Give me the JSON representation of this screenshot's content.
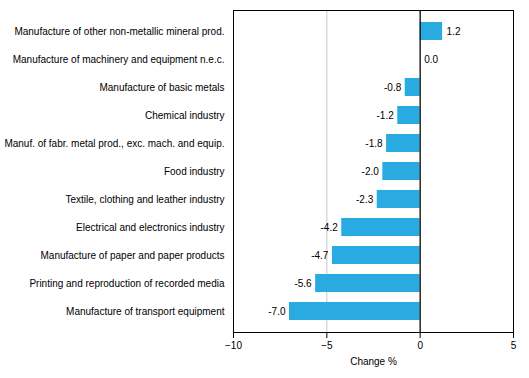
{
  "chart_data": {
    "type": "bar",
    "orientation": "horizontal",
    "categories": [
      "Manufacture of transport equipment",
      "Printing and reproduction of recorded media",
      "Manufacture of paper and paper products",
      "Electrical and electronics industry",
      "Textile, clothing and leather industry",
      "Food industry",
      "Manuf. of fabr. metal prod., exc. mach. and equip.",
      "Chemical industry",
      "Manufacture of basic metals",
      "Manufacture of machinery and equipment n.e.c.",
      "Manufacture of other non-metallic mineral prod."
    ],
    "values": [
      -7.0,
      -5.6,
      -4.7,
      -4.2,
      -2.3,
      -2.0,
      -1.8,
      -1.2,
      -0.8,
      0.0,
      1.2
    ],
    "value_labels": [
      "-7.0",
      "-5.6",
      "-4.7",
      "-4.2",
      "-2.3",
      "-2.0",
      "-1.8",
      "-1.2",
      "-0.8",
      "0.0",
      "1.2"
    ],
    "color": "#29ABE2",
    "xlabel": "Change %",
    "xlim": [
      -10,
      5
    ],
    "xticks": [
      -10,
      -5,
      0,
      5
    ],
    "grid": true,
    "data_labels": true
  }
}
